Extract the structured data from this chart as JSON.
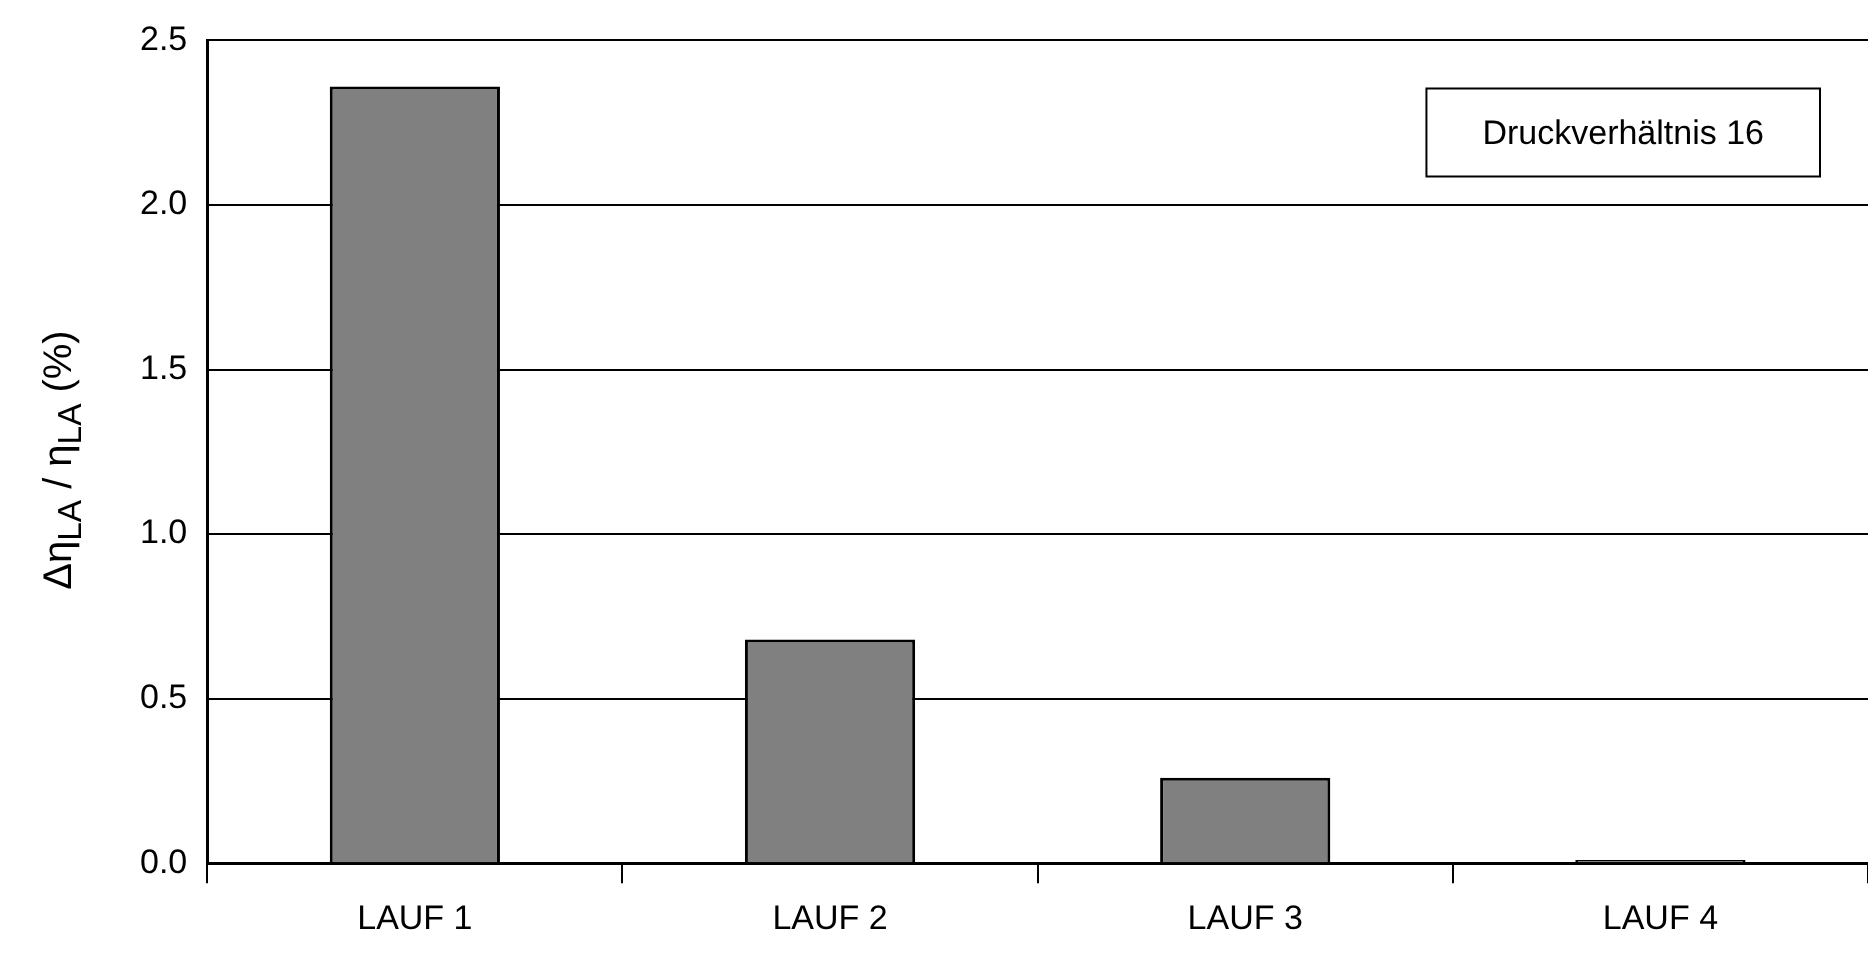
{
  "chart_data": {
    "type": "bar",
    "ylabel": "Δη$_{LA}$ / η$_{LA}$ (%)",
    "categories": [
      "LAUF 1",
      "LAUF 2",
      "LAUF 3",
      "LAUF 4"
    ],
    "values": [
      2.36,
      0.68,
      0.26,
      0.01
    ],
    "color": "#808080",
    "ylim": [
      0,
      2.5
    ],
    "yticks": [
      {
        "value": 0,
        "label": "0.0"
      },
      0.5,
      {
        "value": 1,
        "label": "1.0"
      },
      1.5,
      {
        "value": 2,
        "label": "2.0"
      },
      2.5
    ],
    "grid": "y",
    "annotations": [
      "Druckverhältnis 16"
    ]
  }
}
